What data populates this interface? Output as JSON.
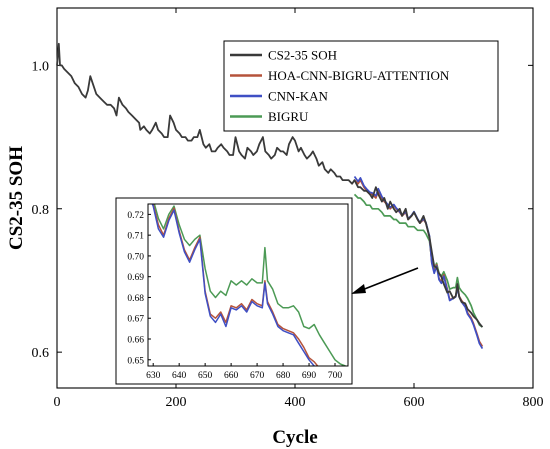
{
  "chart_data": [
    {
      "type": "line",
      "title": "",
      "xlabel": "Cycle",
      "ylabel": "CS2-35 SOH",
      "xlim": [
        0,
        800
      ],
      "ylim": [
        0.55,
        1.08
      ],
      "xticks": [
        0,
        200,
        400,
        600,
        800
      ],
      "yticks": [
        0.6,
        0.8,
        1.0
      ],
      "xtick_labels": [
        "0",
        "200",
        "400",
        "600",
        "800"
      ],
      "ytick_labels": [
        "0.6",
        "0.8",
        "1.0"
      ],
      "grid": false,
      "legend_position": "top-right",
      "series": [
        {
          "name": "CS2-35 SOH",
          "color": "#3a3a3a",
          "x": [
            0,
            3,
            5,
            8,
            12,
            18,
            24,
            30,
            36,
            42,
            48,
            52,
            56,
            60,
            66,
            72,
            78,
            84,
            90,
            96,
            100,
            104,
            110,
            116,
            120,
            126,
            132,
            138,
            140,
            146,
            150,
            156,
            160,
            166,
            170,
            176,
            180,
            186,
            190,
            196,
            200,
            206,
            210,
            216,
            220,
            226,
            230,
            236,
            240,
            246,
            250,
            256,
            260,
            266,
            270,
            276,
            280,
            286,
            290,
            296,
            300,
            306,
            310,
            316,
            320,
            326,
            330,
            336,
            340,
            346,
            350,
            356,
            360,
            366,
            370,
            376,
            380,
            386,
            390,
            396,
            400,
            406,
            410,
            416,
            420,
            426,
            430,
            436,
            440,
            446,
            450,
            456,
            460,
            466,
            470,
            476,
            480,
            486,
            490,
            496,
            500,
            506,
            510,
            516,
            520,
            526,
            530,
            536,
            540,
            546,
            550,
            556,
            560,
            566,
            570,
            576,
            580,
            586,
            590,
            596,
            600,
            606,
            610,
            616,
            620,
            626,
            630,
            634,
            638,
            642,
            646,
            650,
            656,
            660,
            666,
            670,
            673,
            676,
            680,
            686,
            690,
            696,
            700,
            706,
            710,
            715
          ],
          "values": [
            1.0,
            1.03,
            1.0,
            1.0,
            0.995,
            0.99,
            0.985,
            0.975,
            0.97,
            0.96,
            0.955,
            0.965,
            0.985,
            0.975,
            0.96,
            0.955,
            0.95,
            0.945,
            0.945,
            0.94,
            0.93,
            0.955,
            0.945,
            0.94,
            0.935,
            0.93,
            0.925,
            0.92,
            0.91,
            0.915,
            0.91,
            0.905,
            0.91,
            0.92,
            0.91,
            0.905,
            0.9,
            0.9,
            0.93,
            0.92,
            0.91,
            0.905,
            0.9,
            0.9,
            0.895,
            0.895,
            0.9,
            0.9,
            0.91,
            0.89,
            0.885,
            0.89,
            0.88,
            0.88,
            0.885,
            0.89,
            0.885,
            0.88,
            0.875,
            0.875,
            0.9,
            0.88,
            0.875,
            0.87,
            0.885,
            0.88,
            0.875,
            0.88,
            0.89,
            0.9,
            0.88,
            0.875,
            0.87,
            0.875,
            0.885,
            0.88,
            0.88,
            0.875,
            0.89,
            0.9,
            0.895,
            0.88,
            0.885,
            0.875,
            0.87,
            0.875,
            0.88,
            0.87,
            0.86,
            0.865,
            0.855,
            0.85,
            0.855,
            0.85,
            0.845,
            0.845,
            0.84,
            0.84,
            0.84,
            0.835,
            0.84,
            0.83,
            0.83,
            0.825,
            0.825,
            0.82,
            0.815,
            0.83,
            0.82,
            0.81,
            0.815,
            0.8,
            0.81,
            0.8,
            0.795,
            0.8,
            0.79,
            0.8,
            0.785,
            0.79,
            0.795,
            0.785,
            0.78,
            0.79,
            0.78,
            0.76,
            0.74,
            0.72,
            0.718,
            0.71,
            0.705,
            0.695,
            0.683,
            0.685,
            0.675,
            0.678,
            0.695,
            0.677,
            0.67,
            0.668,
            0.66,
            0.655,
            0.65,
            0.645,
            0.64,
            0.635
          ]
        },
        {
          "name": "HOA-CNN-BIGRU-ATTENTION",
          "color": "#b5533b",
          "x": [
            500,
            506,
            510,
            516,
            520,
            526,
            530,
            536,
            540,
            546,
            550,
            556,
            560,
            566,
            570,
            576,
            580,
            586,
            590,
            596,
            600,
            606,
            610,
            616,
            620,
            626,
            630,
            634,
            638,
            642,
            646,
            650,
            656,
            660,
            666,
            670,
            673,
            676,
            680,
            686,
            690,
            696,
            700,
            706,
            710,
            715
          ],
          "values": [
            0.84,
            0.835,
            0.84,
            0.83,
            0.825,
            0.82,
            0.82,
            0.815,
            0.825,
            0.815,
            0.81,
            0.805,
            0.8,
            0.805,
            0.8,
            0.795,
            0.79,
            0.795,
            0.785,
            0.79,
            0.795,
            0.785,
            0.78,
            0.785,
            0.78,
            0.76,
            0.725,
            0.712,
            0.722,
            0.703,
            0.698,
            0.708,
            0.688,
            0.673,
            0.676,
            0.678,
            0.692,
            0.678,
            0.672,
            0.665,
            0.655,
            0.648,
            0.64,
            0.625,
            0.615,
            0.608
          ]
        },
        {
          "name": "CNN-KAN",
          "color": "#3f4fc4",
          "x": [
            500,
            506,
            510,
            516,
            520,
            526,
            530,
            536,
            540,
            546,
            550,
            556,
            560,
            566,
            570,
            576,
            580,
            586,
            590,
            596,
            600,
            606,
            610,
            616,
            620,
            626,
            630,
            634,
            638,
            642,
            646,
            650,
            656,
            660,
            666,
            670,
            673,
            676,
            680,
            686,
            690,
            696,
            700,
            706,
            710,
            715
          ],
          "values": [
            0.845,
            0.838,
            0.843,
            0.832,
            0.828,
            0.823,
            0.822,
            0.818,
            0.828,
            0.817,
            0.812,
            0.806,
            0.802,
            0.806,
            0.801,
            0.796,
            0.791,
            0.796,
            0.786,
            0.791,
            0.796,
            0.786,
            0.781,
            0.786,
            0.781,
            0.762,
            0.724,
            0.71,
            0.72,
            0.701,
            0.696,
            0.706,
            0.686,
            0.672,
            0.675,
            0.677,
            0.69,
            0.677,
            0.67,
            0.663,
            0.653,
            0.646,
            0.638,
            0.623,
            0.612,
            0.605
          ]
        },
        {
          "name": "BIGRU",
          "color": "#4c9a55",
          "x": [
            500,
            506,
            510,
            516,
            520,
            526,
            530,
            536,
            540,
            546,
            550,
            556,
            560,
            566,
            570,
            576,
            580,
            586,
            590,
            596,
            600,
            606,
            610,
            616,
            620,
            626,
            630,
            634,
            638,
            642,
            646,
            650,
            656,
            660,
            666,
            670,
            673,
            676,
            680,
            686,
            690,
            696,
            700,
            706,
            710,
            715
          ],
          "values": [
            0.82,
            0.815,
            0.815,
            0.81,
            0.805,
            0.805,
            0.8,
            0.8,
            0.8,
            0.795,
            0.79,
            0.79,
            0.79,
            0.785,
            0.785,
            0.78,
            0.78,
            0.78,
            0.775,
            0.775,
            0.775,
            0.77,
            0.77,
            0.77,
            0.765,
            0.755,
            0.728,
            0.715,
            0.724,
            0.71,
            0.706,
            0.712,
            0.7,
            0.688,
            0.69,
            0.69,
            0.704,
            0.69,
            0.685,
            0.68,
            0.675,
            0.665,
            0.655,
            0.645,
            0.638,
            0.635
          ]
        }
      ]
    },
    {
      "type": "line",
      "title": "",
      "xlabel": "",
      "ylabel": "",
      "xlim": [
        628,
        705
      ],
      "ylim": [
        0.647,
        0.725
      ],
      "xticks": [
        630,
        640,
        650,
        660,
        670,
        680,
        690,
        700
      ],
      "yticks": [
        0.65,
        0.66,
        0.67,
        0.68,
        0.69,
        0.7,
        0.71,
        0.72
      ],
      "xtick_labels": [
        "630",
        "640",
        "650",
        "660",
        "670",
        "680",
        "690",
        "700"
      ],
      "ytick_labels": [
        "0.65",
        "0.66",
        "0.67",
        "0.68",
        "0.69",
        "0.70",
        "0.71",
        "0.72"
      ],
      "grid": false,
      "legend_position": "none",
      "series": [
        {
          "name": "HOA-CNN-BIGRU-ATTENTION",
          "color": "#b5533b",
          "x": [
            628,
            630,
            632,
            634,
            636,
            638,
            640,
            642,
            644,
            646,
            648,
            650,
            652,
            654,
            656,
            658,
            660,
            662,
            664,
            666,
            668,
            670,
            672,
            673,
            674,
            676,
            678,
            680,
            682,
            684,
            686,
            688,
            690,
            692,
            694
          ],
          "values": [
            0.73,
            0.725,
            0.715,
            0.71,
            0.718,
            0.723,
            0.712,
            0.703,
            0.698,
            0.704,
            0.709,
            0.683,
            0.672,
            0.67,
            0.673,
            0.668,
            0.676,
            0.675,
            0.677,
            0.674,
            0.679,
            0.677,
            0.676,
            0.688,
            0.678,
            0.673,
            0.667,
            0.665,
            0.664,
            0.663,
            0.66,
            0.656,
            0.651,
            0.649,
            0.646
          ]
        },
        {
          "name": "CNN-KAN",
          "color": "#3f4fc4",
          "x": [
            628,
            630,
            632,
            634,
            636,
            638,
            640,
            642,
            644,
            646,
            648,
            650,
            652,
            654,
            656,
            658,
            660,
            662,
            664,
            666,
            668,
            670,
            672,
            673,
            674,
            676,
            678,
            680,
            682,
            684,
            686,
            688,
            690,
            692,
            694
          ],
          "values": [
            0.73,
            0.724,
            0.713,
            0.709,
            0.717,
            0.722,
            0.711,
            0.702,
            0.697,
            0.703,
            0.708,
            0.682,
            0.671,
            0.668,
            0.672,
            0.666,
            0.675,
            0.674,
            0.676,
            0.673,
            0.678,
            0.676,
            0.675,
            0.687,
            0.677,
            0.672,
            0.666,
            0.664,
            0.663,
            0.662,
            0.658,
            0.654,
            0.65,
            0.647,
            0.645
          ]
        },
        {
          "name": "BIGRU",
          "color": "#4c9a55",
          "x": [
            628,
            630,
            632,
            634,
            636,
            638,
            640,
            642,
            644,
            646,
            648,
            650,
            652,
            654,
            656,
            658,
            660,
            662,
            664,
            666,
            668,
            670,
            672,
            673,
            674,
            676,
            678,
            680,
            682,
            684,
            686,
            688,
            690,
            692,
            694,
            696,
            698,
            700,
            702,
            704
          ],
          "values": [
            0.73,
            0.727,
            0.718,
            0.713,
            0.72,
            0.724,
            0.715,
            0.708,
            0.705,
            0.708,
            0.71,
            0.694,
            0.683,
            0.68,
            0.683,
            0.681,
            0.688,
            0.686,
            0.688,
            0.686,
            0.689,
            0.687,
            0.687,
            0.704,
            0.688,
            0.684,
            0.677,
            0.675,
            0.675,
            0.676,
            0.673,
            0.666,
            0.665,
            0.667,
            0.662,
            0.658,
            0.654,
            0.65,
            0.648,
            0.647
          ]
        }
      ]
    }
  ]
}
